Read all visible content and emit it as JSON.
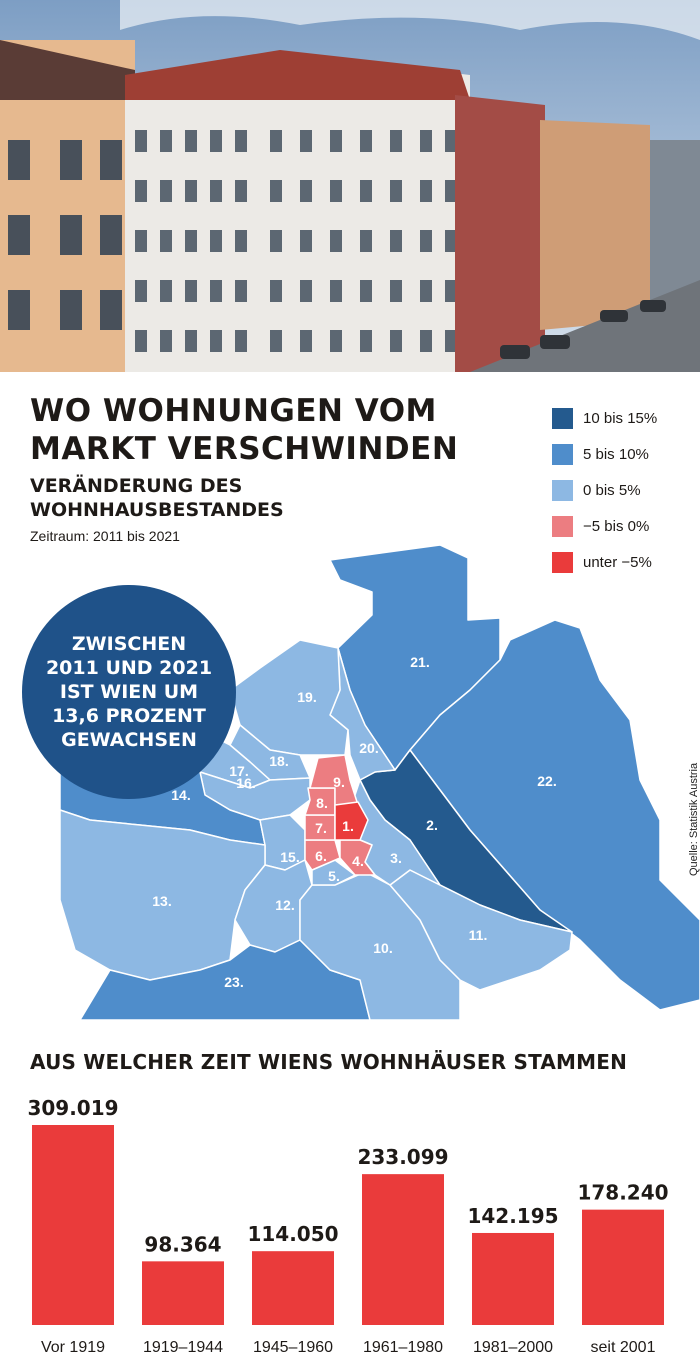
{
  "header": {
    "title": "WO WOHNUNGEN VOM MARKT VERSCHWINDEN",
    "subtitle": "VERÄNDERUNG DES WOHNHAUSBESTANDES",
    "period": "Zeitraum: 2011 bis 2021"
  },
  "legend": [
    {
      "label": "10 bis 15%",
      "color": "#245a8e"
    },
    {
      "label": "5 bis 10%",
      "color": "#4f8dcb"
    },
    {
      "label": "0 bis 5%",
      "color": "#8db8e3"
    },
    {
      "label": "−5 bis 0%",
      "color": "#ec7d81"
    },
    {
      "label": "unter  −5%",
      "color": "#ea3b3b"
    }
  ],
  "callout": {
    "text": "ZWISCHEN\n2011 UND 2021\nIST WIEN UM\n13,6 PROZENT\nGEWACHSEN"
  },
  "source": "Quelle: Statistik Austria",
  "map": {
    "districts": [
      {
        "label": "1.",
        "class": "unter  −5%"
      },
      {
        "label": "2.",
        "class": "10 bis 15%"
      },
      {
        "label": "3.",
        "class": "0 bis 5%"
      },
      {
        "label": "4.",
        "class": "−5 bis 0%"
      },
      {
        "label": "5.",
        "class": "0 bis 5%"
      },
      {
        "label": "6.",
        "class": "−5 bis 0%"
      },
      {
        "label": "7.",
        "class": "−5 bis 0%"
      },
      {
        "label": "8.",
        "class": "−5 bis 0%"
      },
      {
        "label": "9.",
        "class": "−5 bis 0%"
      },
      {
        "label": "10.",
        "class": "0 bis 5%"
      },
      {
        "label": "11.",
        "class": "0 bis 5%"
      },
      {
        "label": "12.",
        "class": "0 bis 5%"
      },
      {
        "label": "13.",
        "class": "0 bis 5%"
      },
      {
        "label": "14.",
        "class": "5 bis 10%"
      },
      {
        "label": "15.",
        "class": "0 bis 5%"
      },
      {
        "label": "16.",
        "class": "0 bis 5%"
      },
      {
        "label": "17.",
        "class": "0 bis 5%"
      },
      {
        "label": "18.",
        "class": "0 bis 5%"
      },
      {
        "label": "19.",
        "class": "0 bis 5%"
      },
      {
        "label": "20.",
        "class": "0 bis 5%"
      },
      {
        "label": "21.",
        "class": "5 bis 10%"
      },
      {
        "label": "22.",
        "class": "5 bis 10%"
      },
      {
        "label": "23.",
        "class": "5 bis 10%"
      }
    ]
  },
  "chart_data": {
    "type": "bar",
    "title": "AUS WELCHER ZEIT WIENS WOHNHÄUSER STAMMEN",
    "categories": [
      "Vor 1919",
      "1919–1944",
      "1945–1960",
      "1961–1980",
      "1981–2000",
      "seit 2001"
    ],
    "values": [
      309019,
      98364,
      114050,
      233099,
      142195,
      178240
    ],
    "value_labels": [
      "309.019",
      "98.364",
      "114.050",
      "233.099",
      "142.195",
      "178.240"
    ],
    "ylim": [
      0,
      309019
    ],
    "grid": false,
    "bar_color": "#ea3b3b"
  }
}
